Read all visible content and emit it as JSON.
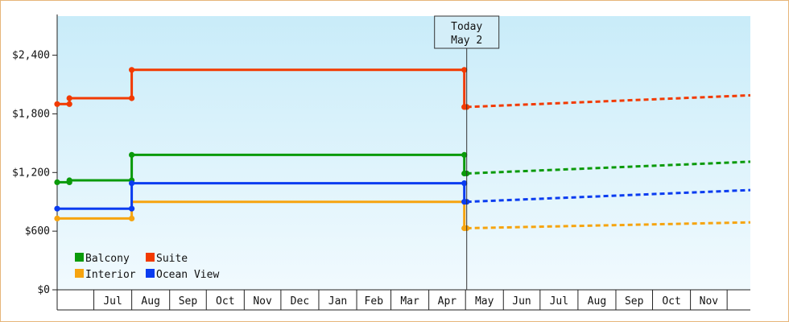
{
  "chart_data": {
    "type": "line",
    "title": "",
    "xlabel": "",
    "ylabel": "",
    "step": true,
    "ylim": [
      0,
      2800
    ],
    "y_ticks": [
      {
        "value": 0,
        "label": "$0"
      },
      {
        "value": 600,
        "label": "$600"
      },
      {
        "value": 1200,
        "label": "$1,200"
      },
      {
        "value": 1800,
        "label": "$1,800"
      },
      {
        "value": 2400,
        "label": "$2,400"
      }
    ],
    "x_months": [
      "Jul",
      "Aug",
      "Sep",
      "Oct",
      "Nov",
      "Dec",
      "Jan",
      "Feb",
      "Mar",
      "Apr",
      "May",
      "Jun",
      "Jul",
      "Aug",
      "Sep",
      "Oct",
      "Nov"
    ],
    "x_domain": [
      "2025-06-01",
      "2026-12-20"
    ],
    "today": {
      "date": "2026-05-02",
      "line1": "Today",
      "line2": "May 2"
    },
    "gradient": {
      "top": "#c9ecf9",
      "bottom": "#f1fafe"
    },
    "legend": {
      "position": "bottom-left"
    },
    "series": [
      {
        "name": "Balcony",
        "color": "#0a9a0a",
        "actual": [
          [
            "2025-06-01",
            1100
          ],
          [
            "2025-06-11",
            1100
          ],
          [
            "2025-06-11",
            1120
          ],
          [
            "2025-08-01",
            1120
          ],
          [
            "2025-08-01",
            1380
          ],
          [
            "2026-04-30",
            1380
          ],
          [
            "2026-04-30",
            1190
          ],
          [
            "2026-05-02",
            1190
          ]
        ],
        "points": [
          [
            "2025-06-01",
            1100
          ],
          [
            "2025-06-11",
            1100
          ],
          [
            "2025-06-11",
            1120
          ],
          [
            "2025-08-01",
            1120
          ],
          [
            "2025-08-01",
            1380
          ],
          [
            "2026-04-30",
            1380
          ],
          [
            "2026-04-30",
            1190
          ],
          [
            "2026-05-02",
            1190
          ]
        ],
        "forecast": [
          [
            "2026-05-02",
            1190
          ],
          [
            "2026-12-20",
            1310
          ]
        ]
      },
      {
        "name": "Suite",
        "color": "#f23a00",
        "actual": [
          [
            "2025-06-01",
            1900
          ],
          [
            "2025-06-11",
            1900
          ],
          [
            "2025-06-11",
            1960
          ],
          [
            "2025-08-01",
            1960
          ],
          [
            "2025-08-01",
            2250
          ],
          [
            "2026-04-30",
            2250
          ],
          [
            "2026-04-30",
            1870
          ],
          [
            "2026-05-02",
            1870
          ]
        ],
        "points": [
          [
            "2025-06-01",
            1900
          ],
          [
            "2025-06-11",
            1900
          ],
          [
            "2025-06-11",
            1960
          ],
          [
            "2025-08-01",
            1960
          ],
          [
            "2025-08-01",
            2250
          ],
          [
            "2026-04-30",
            2250
          ],
          [
            "2026-04-30",
            1870
          ],
          [
            "2026-05-02",
            1870
          ]
        ],
        "forecast": [
          [
            "2026-05-02",
            1870
          ],
          [
            "2026-12-20",
            1990
          ]
        ]
      },
      {
        "name": "Interior",
        "color": "#f6a40f",
        "actual": [
          [
            "2025-06-01",
            730
          ],
          [
            "2025-08-01",
            730
          ],
          [
            "2025-08-01",
            900
          ],
          [
            "2026-04-30",
            900
          ],
          [
            "2026-04-30",
            630
          ],
          [
            "2026-05-02",
            630
          ]
        ],
        "points": [
          [
            "2025-06-01",
            730
          ],
          [
            "2025-08-01",
            730
          ],
          [
            "2026-04-30",
            630
          ],
          [
            "2026-05-02",
            630
          ]
        ],
        "forecast": [
          [
            "2026-05-02",
            630
          ],
          [
            "2026-12-20",
            690
          ]
        ]
      },
      {
        "name": "Ocean View",
        "color": "#0a3cf0",
        "actual": [
          [
            "2025-06-01",
            830
          ],
          [
            "2025-08-01",
            830
          ],
          [
            "2025-08-01",
            1090
          ],
          [
            "2026-04-30",
            1090
          ],
          [
            "2026-04-30",
            900
          ],
          [
            "2026-05-02",
            900
          ]
        ],
        "points": [
          [
            "2025-06-01",
            830
          ],
          [
            "2025-08-01",
            830
          ],
          [
            "2025-08-01",
            1090
          ],
          [
            "2026-04-30",
            1090
          ],
          [
            "2026-04-30",
            900
          ],
          [
            "2026-05-02",
            900
          ]
        ],
        "forecast": [
          [
            "2026-05-02",
            900
          ],
          [
            "2026-12-20",
            1020
          ]
        ]
      }
    ]
  }
}
